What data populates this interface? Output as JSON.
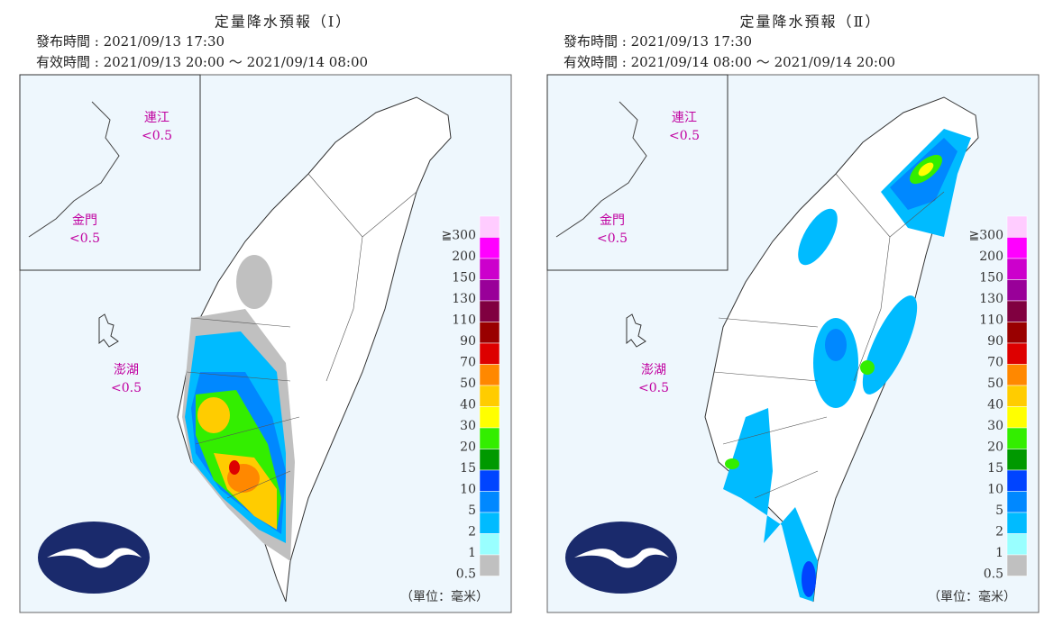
{
  "panels": [
    {
      "title": "定量降水預報（Ⅰ）",
      "issued": "發布時間 : 2021/09/13 17:30",
      "valid": "有效時間 : 2021/09/13 20:00 ～ 2021/09/14 08:00",
      "regions": [
        {
          "name": "連江",
          "value": "<0.5"
        },
        {
          "name": "金門",
          "value": "<0.5"
        },
        {
          "name": "澎湖",
          "value": "<0.5"
        }
      ]
    },
    {
      "title": "定量降水預報（Ⅱ）",
      "issued": "發布時間 : 2021/09/13 17:30",
      "valid": "有效時間 : 2021/09/14 08:00 ～ 2021/09/14 20:00",
      "regions": [
        {
          "name": "連江",
          "value": "<0.5"
        },
        {
          "name": "金門",
          "value": "<0.5"
        },
        {
          "name": "澎湖",
          "value": "<0.5"
        }
      ]
    }
  ],
  "legend": {
    "labels": [
      "≧300",
      "200",
      "150",
      "130",
      "110",
      "90",
      "70",
      "50",
      "40",
      "30",
      "20",
      "15",
      "10",
      "5",
      "2",
      "1",
      "0.5"
    ],
    "colors": [
      "#ffccff",
      "#ff00ff",
      "#cc00cc",
      "#990099",
      "#800040",
      "#990000",
      "#dd0000",
      "#ff8800",
      "#ffcc00",
      "#ffff00",
      "#33ee00",
      "#009900",
      "#0044ff",
      "#0088ff",
      "#00bbff",
      "#99ffff",
      "#c0c0c0"
    ],
    "unit": "（單位：毫米）"
  }
}
